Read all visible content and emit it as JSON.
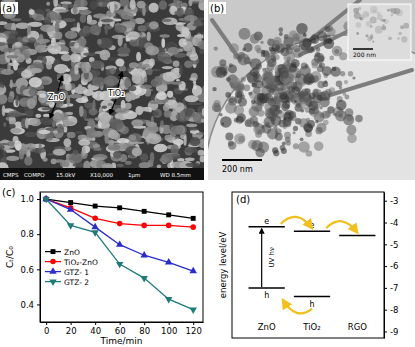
{
  "images": [
    {
      "panel_label": "(a)",
      "annotations": [
        "ZnO",
        "TiO₂"
      ],
      "footer": [
        "CMPS",
        "COMPO",
        "15.0kV",
        "X10,000",
        "1μm",
        "WD 8.5mm"
      ]
    },
    {
      "panel_label": "(b)",
      "scale_bar": "200 nm",
      "inset_scale_bar": "200 nm"
    }
  ],
  "chart_data": [
    {
      "type": "line",
      "panel_label": "(c)",
      "x_label": "Time/min",
      "y_label": "Cₜ/C₀",
      "x": [
        0,
        20,
        40,
        60,
        80,
        100,
        120
      ],
      "xlim": [
        -5,
        128
      ],
      "xticks": [
        0,
        20,
        40,
        60,
        80,
        100,
        120
      ],
      "ylim": [
        0.3,
        1.04
      ],
      "yticks": [
        0.4,
        0.6,
        0.8,
        {
          "value": 1,
          "label": "1.0"
        }
      ],
      "grid": false,
      "legend": "left",
      "series": [
        {
          "name": "ZnO",
          "color": "#000000",
          "marker": "square",
          "values": [
            1.0,
            0.98,
            0.96,
            0.95,
            0.93,
            0.91,
            0.89
          ]
        },
        {
          "name": "TiO₂-ZnO",
          "color": "#ff0000",
          "marker": "circle",
          "values": [
            1.0,
            0.95,
            0.89,
            0.86,
            0.85,
            0.85,
            0.84
          ]
        },
        {
          "name": "GTZ- 1",
          "color": "#2b2bcc",
          "marker": "triangle-up",
          "values": [
            1.0,
            0.94,
            0.84,
            0.74,
            0.68,
            0.64,
            0.59
          ]
        },
        {
          "name": "GTZ- 2",
          "color": "#1f7a7a",
          "marker": "triangle-down",
          "values": [
            1.0,
            0.85,
            0.81,
            0.63,
            0.55,
            0.43,
            0.37
          ]
        }
      ]
    },
    {
      "type": "energy_level",
      "panel_label": "(d)",
      "y_label": "energy level/eV",
      "ylim": [
        -2.6,
        -9.3
      ],
      "yticks": [
        -3,
        -4,
        -5,
        -6,
        -7,
        -8,
        -9
      ],
      "tick_labels": "y",
      "excitation_label": "UV hν",
      "materials": [
        {
          "name": "ZnO",
          "levels": [
            -4.2,
            -7.0
          ],
          "level_labels": [
            "e",
            "h"
          ]
        },
        {
          "name": "TiO₂",
          "levels": [
            -4.4,
            -7.4
          ],
          "level_labels": [
            "e",
            "h"
          ]
        },
        {
          "name": "RGO",
          "levels": [
            -4.6
          ]
        }
      ]
    }
  ]
}
